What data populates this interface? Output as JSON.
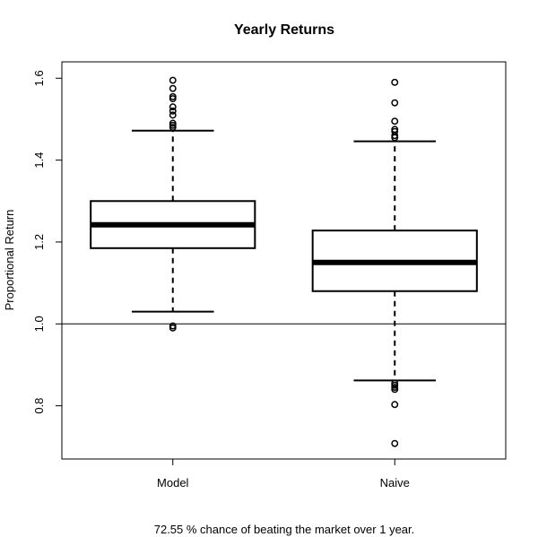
{
  "chart_data": {
    "type": "boxplot",
    "title": "Yearly Returns",
    "xlabel": "",
    "ylabel": "Proportional Return",
    "ylim": [
      0.67,
      1.64
    ],
    "yticks": [
      0.8,
      1.0,
      1.2,
      1.4,
      1.6
    ],
    "ytick_labels": [
      "0.8",
      "1.0",
      "1.2",
      "1.4",
      "1.6"
    ],
    "reference_line": 1.0,
    "grid": false,
    "categories": [
      "Model",
      "Naive"
    ],
    "boxes": [
      {
        "category": "Model",
        "whisker_low": 1.03,
        "q1": 1.185,
        "median": 1.242,
        "q3": 1.3,
        "whisker_high": 1.472,
        "outliers": [
          0.99,
          0.995,
          1.48,
          1.485,
          1.49,
          1.51,
          1.52,
          1.53,
          1.55,
          1.555,
          1.575,
          1.595
        ]
      },
      {
        "category": "Naive",
        "whisker_low": 0.862,
        "q1": 1.08,
        "median": 1.15,
        "q3": 1.228,
        "whisker_high": 1.446,
        "outliers": [
          0.708,
          0.803,
          0.84,
          0.845,
          0.85,
          0.855,
          1.455,
          1.46,
          1.47,
          1.475,
          1.495,
          1.54,
          1.59
        ]
      }
    ]
  },
  "caption": "72.55 % chance of beating the market over 1 year."
}
